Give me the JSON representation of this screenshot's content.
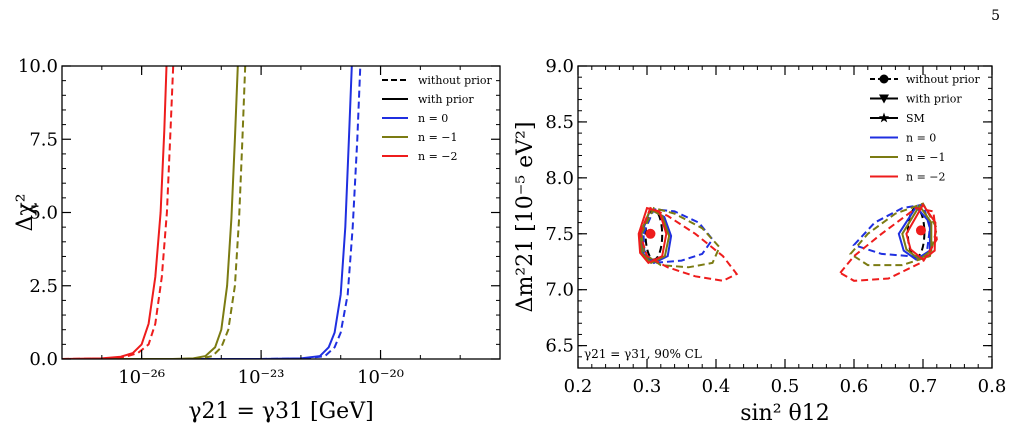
{
  "page": {
    "number": "5"
  },
  "colors": {
    "n0": "#1f2fe0",
    "n_1": "#7b7b12",
    "n_2": "#ee1c1c",
    "black": "#000000"
  },
  "chart_data": [
    {
      "type": "line",
      "x_scale": "log",
      "xlabel": "γ21 = γ31 [GeV]",
      "ylabel": "Δχ²",
      "xlim": [
        1e-28,
        1e-17
      ],
      "ylim": [
        0,
        10
      ],
      "x_ticks": [
        {
          "value": 1e-26,
          "label": "10⁻²⁶"
        },
        {
          "value": 1e-23,
          "label": "10⁻²³"
        },
        {
          "value": 1e-20,
          "label": "10⁻²⁰"
        }
      ],
      "y_ticks": [
        "0.0",
        "2.5",
        "5.0",
        "7.5",
        "10.0"
      ],
      "grid": false,
      "legend_position": "top-right",
      "legend": [
        {
          "label": "without prior",
          "style": "dashed",
          "color": "#000000"
        },
        {
          "label": "with prior",
          "style": "solid",
          "color": "#000000"
        },
        {
          "label": "n = 0",
          "style": "solid",
          "color": "#1f2fe0"
        },
        {
          "label": "n = −1",
          "style": "solid",
          "color": "#7b7b12"
        },
        {
          "label": "n = −2",
          "style": "solid",
          "color": "#ee1c1c"
        }
      ],
      "series": [
        {
          "n": "0",
          "prior": "with",
          "color": "#1f2fe0",
          "dash": false,
          "x": [
            1e-28,
            1e-23,
            1e-22,
            3e-22,
            5e-22,
            7e-22,
            1e-21,
            1.3e-21,
            1.6e-21,
            1.9e-21
          ],
          "y": [
            0,
            0,
            0.02,
            0.1,
            0.4,
            0.9,
            2.2,
            4.5,
            7.5,
            10
          ]
        },
        {
          "n": "0",
          "prior": "without",
          "color": "#1f2fe0",
          "dash": true,
          "x": [
            1e-28,
            1e-23,
            1.3e-22,
            4e-22,
            7e-22,
            1e-21,
            1.5e-21,
            2e-21,
            2.6e-21,
            3.1e-21
          ],
          "y": [
            0,
            0,
            0.02,
            0.1,
            0.4,
            0.9,
            2.2,
            4.5,
            7.5,
            10
          ]
        },
        {
          "n": "−1",
          "prior": "with",
          "color": "#7b7b12",
          "dash": false,
          "x": [
            1e-28,
            6e-26,
            2e-25,
            4e-25,
            7e-25,
            1e-24,
            1.4e-24,
            1.8e-24,
            2.2e-24,
            2.6e-24
          ],
          "y": [
            0,
            0,
            0.02,
            0.1,
            0.4,
            1.0,
            2.5,
            4.8,
            7.5,
            10
          ]
        },
        {
          "n": "−1",
          "prior": "without",
          "color": "#7b7b12",
          "dash": true,
          "x": [
            1e-28,
            1e-25,
            3e-25,
            6e-25,
            1e-24,
            1.5e-24,
            2.2e-24,
            2.8e-24,
            3.4e-24,
            4e-24
          ],
          "y": [
            0,
            0,
            0.02,
            0.1,
            0.4,
            1.0,
            2.5,
            4.8,
            7.5,
            10
          ]
        },
        {
          "n": "−2",
          "prior": "with",
          "color": "#ee1c1c",
          "dash": false,
          "x": [
            1e-28,
            1e-27,
            3e-27,
            6e-27,
            1e-26,
            1.5e-26,
            2.2e-26,
            3e-26,
            3.7e-26,
            4.2e-26
          ],
          "y": [
            0,
            0.02,
            0.08,
            0.2,
            0.5,
            1.2,
            2.8,
            5.0,
            7.8,
            10
          ]
        },
        {
          "n": "−2",
          "prior": "without",
          "color": "#ee1c1c",
          "dash": true,
          "x": [
            1e-28,
            1.5e-27,
            4e-27,
            8e-27,
            1.5e-26,
            2.2e-26,
            3.2e-26,
            4.3e-26,
            5.3e-26,
            6.2e-26
          ],
          "y": [
            0,
            0.02,
            0.08,
            0.2,
            0.5,
            1.2,
            2.8,
            5.0,
            7.8,
            10
          ]
        }
      ]
    },
    {
      "type": "contour",
      "xlabel": "sin² θ12",
      "ylabel": "Δm²21 [10⁻⁵ eV²]",
      "xlim": [
        0.2,
        0.8
      ],
      "ylim": [
        6.3,
        9.0
      ],
      "x_ticks": [
        "0.2",
        "0.3",
        "0.4",
        "0.5",
        "0.6",
        "0.7",
        "0.8"
      ],
      "y_ticks": [
        "6.5",
        "7.0",
        "7.5",
        "8.0",
        "8.5",
        "9.0"
      ],
      "grid": false,
      "legend_position": "top-right",
      "annotation": "γ21 = γ31, 90% CL",
      "legend": [
        {
          "label": "without prior",
          "style": "dashed",
          "marker": "circle",
          "color": "#000000"
        },
        {
          "label": "with prior",
          "style": "solid",
          "marker": "triangle-down",
          "color": "#000000"
        },
        {
          "label": "SM",
          "style": "solid",
          "marker": "star",
          "color": "#000000"
        },
        {
          "label": "n = 0",
          "style": "solid",
          "color": "#1f2fe0"
        },
        {
          "label": "n = −1",
          "style": "solid",
          "color": "#7b7b12"
        },
        {
          "label": "n = −2",
          "style": "solid",
          "color": "#ee1c1c"
        }
      ],
      "best_fit_points": [
        {
          "x": 0.305,
          "y": 7.5,
          "color": "#ee1c1c",
          "marker": "circle"
        },
        {
          "x": 0.697,
          "y": 7.53,
          "color": "#ee1c1c",
          "marker": "circle"
        }
      ],
      "contours": [
        {
          "label": "SM",
          "color": "#000000",
          "dash": true,
          "cx": 0.31,
          "cy": 7.49,
          "rx": 0.012,
          "ry": 0.22
        },
        {
          "label": "SM",
          "color": "#000000",
          "dash": true,
          "cx": 0.69,
          "cy": 7.51,
          "rx": 0.012,
          "ry": 0.22
        },
        {
          "label": "n = 0 without prior",
          "color": "#1f2fe0",
          "dash": true,
          "points": [
            [
              0.295,
              7.5
            ],
            [
              0.31,
              7.72
            ],
            [
              0.34,
              7.7
            ],
            [
              0.375,
              7.6
            ],
            [
              0.395,
              7.45
            ],
            [
              0.38,
              7.32
            ],
            [
              0.35,
              7.26
            ],
            [
              0.31,
              7.24
            ],
            [
              0.296,
              7.35
            ],
            [
              0.295,
              7.5
            ]
          ]
        },
        {
          "label": "n = 0 with prior",
          "color": "#1f2fe0",
          "dash": false,
          "points": [
            [
              0.292,
              7.5
            ],
            [
              0.305,
              7.72
            ],
            [
              0.325,
              7.65
            ],
            [
              0.335,
              7.48
            ],
            [
              0.33,
              7.3
            ],
            [
              0.31,
              7.24
            ],
            [
              0.295,
              7.32
            ],
            [
              0.292,
              7.5
            ]
          ]
        },
        {
          "label": "n = −1 without prior",
          "color": "#7b7b12",
          "dash": true,
          "points": [
            [
              0.292,
              7.5
            ],
            [
              0.31,
              7.73
            ],
            [
              0.34,
              7.68
            ],
            [
              0.38,
              7.55
            ],
            [
              0.405,
              7.38
            ],
            [
              0.395,
              7.24
            ],
            [
              0.36,
              7.2
            ],
            [
              0.32,
              7.22
            ],
            [
              0.296,
              7.32
            ],
            [
              0.292,
              7.5
            ]
          ]
        },
        {
          "label": "n = −1 with prior",
          "color": "#7b7b12",
          "dash": false,
          "points": [
            [
              0.29,
              7.5
            ],
            [
              0.305,
              7.72
            ],
            [
              0.322,
              7.66
            ],
            [
              0.332,
              7.48
            ],
            [
              0.326,
              7.3
            ],
            [
              0.306,
              7.24
            ],
            [
              0.292,
              7.33
            ],
            [
              0.29,
              7.5
            ]
          ]
        },
        {
          "label": "n = −2 without prior",
          "color": "#ee1c1c",
          "dash": true,
          "points": [
            [
              0.29,
              7.5
            ],
            [
              0.305,
              7.73
            ],
            [
              0.33,
              7.66
            ],
            [
              0.37,
              7.5
            ],
            [
              0.41,
              7.3
            ],
            [
              0.43,
              7.14
            ],
            [
              0.41,
              7.08
            ],
            [
              0.37,
              7.12
            ],
            [
              0.33,
              7.2
            ],
            [
              0.3,
              7.3
            ],
            [
              0.29,
              7.5
            ]
          ]
        },
        {
          "label": "n = −2 with prior",
          "color": "#ee1c1c",
          "dash": false,
          "points": [
            [
              0.288,
              7.5
            ],
            [
              0.3,
              7.73
            ],
            [
              0.318,
              7.7
            ],
            [
              0.328,
              7.5
            ],
            [
              0.322,
              7.3
            ],
            [
              0.302,
              7.24
            ],
            [
              0.29,
              7.33
            ],
            [
              0.288,
              7.5
            ]
          ]
        },
        {
          "label": "n = 0 without prior",
          "color": "#1f2fe0",
          "dash": true,
          "points": [
            [
              0.6,
              7.4
            ],
            [
              0.63,
              7.6
            ],
            [
              0.67,
              7.73
            ],
            [
              0.7,
              7.76
            ],
            [
              0.71,
              7.55
            ],
            [
              0.705,
              7.3
            ],
            [
              0.68,
              7.3
            ],
            [
              0.64,
              7.32
            ],
            [
              0.6,
              7.4
            ]
          ]
        },
        {
          "label": "n = 0 with prior",
          "color": "#1f2fe0",
          "dash": false,
          "points": [
            [
              0.665,
              7.5
            ],
            [
              0.69,
              7.74
            ],
            [
              0.71,
              7.6
            ],
            [
              0.71,
              7.35
            ],
            [
              0.69,
              7.27
            ],
            [
              0.672,
              7.35
            ],
            [
              0.665,
              7.5
            ]
          ]
        },
        {
          "label": "n = −1 without prior",
          "color": "#7b7b12",
          "dash": true,
          "points": [
            [
              0.595,
              7.32
            ],
            [
              0.62,
              7.5
            ],
            [
              0.66,
              7.68
            ],
            [
              0.7,
              7.77
            ],
            [
              0.72,
              7.55
            ],
            [
              0.71,
              7.3
            ],
            [
              0.67,
              7.22
            ],
            [
              0.62,
              7.22
            ],
            [
              0.595,
              7.32
            ]
          ]
        },
        {
          "label": "n = −1 with prior",
          "color": "#7b7b12",
          "dash": false,
          "points": [
            [
              0.67,
              7.5
            ],
            [
              0.695,
              7.75
            ],
            [
              0.712,
              7.6
            ],
            [
              0.712,
              7.35
            ],
            [
              0.695,
              7.27
            ],
            [
              0.676,
              7.36
            ],
            [
              0.67,
              7.5
            ]
          ]
        },
        {
          "label": "n = −2 without prior",
          "color": "#ee1c1c",
          "dash": true,
          "points": [
            [
              0.58,
              7.15
            ],
            [
              0.6,
              7.3
            ],
            [
              0.64,
              7.5
            ],
            [
              0.69,
              7.73
            ],
            [
              0.715,
              7.7
            ],
            [
              0.72,
              7.45
            ],
            [
              0.7,
              7.25
            ],
            [
              0.65,
              7.1
            ],
            [
              0.6,
              7.08
            ],
            [
              0.58,
              7.15
            ]
          ]
        },
        {
          "label": "n = −2 with prior",
          "color": "#ee1c1c",
          "dash": false,
          "points": [
            [
              0.676,
              7.5
            ],
            [
              0.7,
              7.76
            ],
            [
              0.718,
              7.6
            ],
            [
              0.717,
              7.35
            ],
            [
              0.7,
              7.27
            ],
            [
              0.682,
              7.36
            ],
            [
              0.676,
              7.5
            ]
          ]
        }
      ]
    }
  ]
}
